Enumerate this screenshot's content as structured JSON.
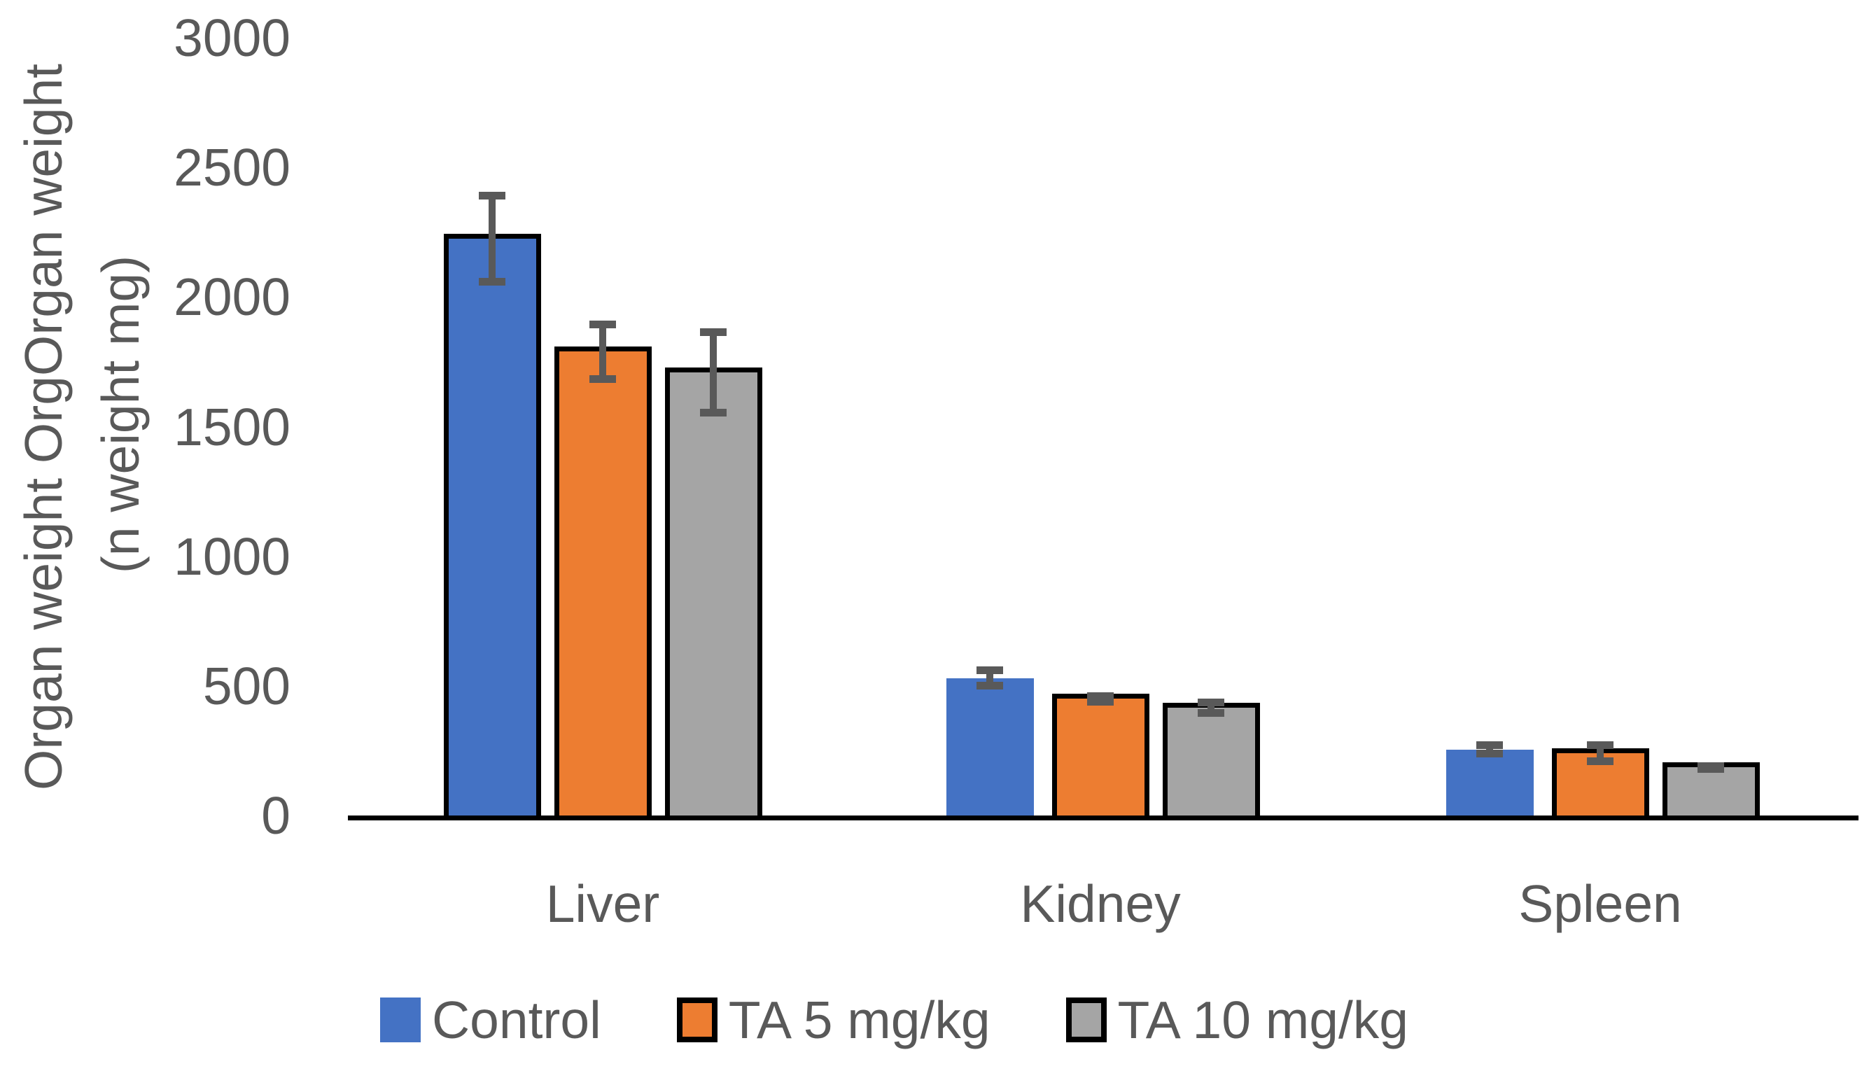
{
  "chart_data": {
    "type": "bar",
    "title": "",
    "ylabel_line1": "Organ weight OrgOrgan weight",
    "ylabel_line2": "(n weight mg)",
    "categories": [
      "Liver",
      "Kidney",
      "Spleen"
    ],
    "series": [
      {
        "name": "Control",
        "color": "#4472C4",
        "legend_border": false,
        "values": [
          2225,
          530,
          255
        ],
        "errors": [
          180,
          45,
          30
        ],
        "bar_borders": [
          true,
          false,
          false
        ]
      },
      {
        "name": "TA 5 mg/kg",
        "color": "#ED7D31",
        "legend_border": true,
        "values": [
          1790,
          450,
          240
        ],
        "errors": [
          120,
          25,
          45
        ],
        "bar_borders": [
          true,
          true,
          true
        ]
      },
      {
        "name": "TA 10 mg/kg",
        "color": "#A5A5A5",
        "legend_border": true,
        "values": [
          1710,
          415,
          185
        ],
        "errors": [
          170,
          35,
          20
        ],
        "bar_borders": [
          true,
          true,
          true
        ]
      }
    ],
    "yticks": [
      "0",
      "500",
      "1000",
      "1500",
      "2000",
      "2500",
      "3000"
    ],
    "ylim": [
      0,
      3000
    ],
    "grid": false,
    "legend_position": "bottom",
    "colors": {
      "error_bar": "#595959",
      "text": "#595959",
      "axis": "#000000",
      "bar_border": "#000000",
      "background": "#FFFFFF"
    }
  }
}
